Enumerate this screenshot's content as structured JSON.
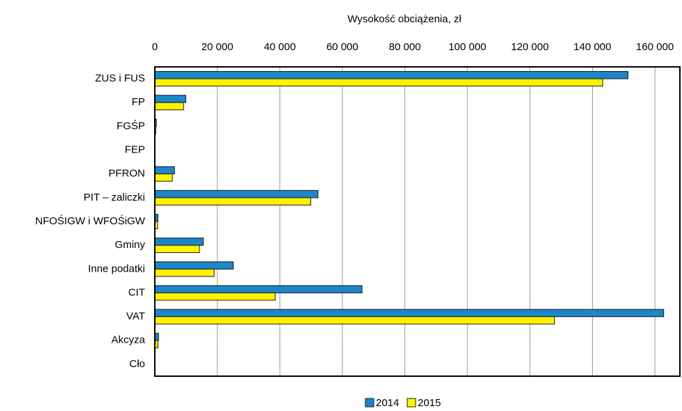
{
  "chart_data": {
    "type": "hbar",
    "x_axis_label": "Wysokość obciążenia, zł",
    "categories": [
      "ZUS i FUS",
      "FP",
      "FGŚP",
      "FEP",
      "PFRON",
      "PIT – zaliczki",
      "NFOŚIGW i WFOŚiGW",
      "Gminy",
      "Inne podatki",
      "CIT",
      "VAT",
      "Akcyza",
      "Cło"
    ],
    "series": [
      {
        "name": "2014",
        "color": "#1b87c9",
        "values": [
          151400,
          9900,
          500,
          100,
          6300,
          52200,
          1000,
          15500,
          25100,
          66300,
          162800,
          1200,
          100
        ]
      },
      {
        "name": "2015",
        "color": "#fff200",
        "values": [
          143300,
          9200,
          300,
          100,
          5600,
          49900,
          900,
          14300,
          19000,
          38500,
          127900,
          1000,
          100
        ]
      }
    ],
    "xlim": [
      0,
      168000
    ],
    "xticks": [
      0,
      {
        "value": 20000,
        "label": "20 000"
      },
      {
        "value": 40000,
        "label": "40 000"
      },
      {
        "value": 60000,
        "label": "60 000"
      },
      {
        "value": 80000,
        "label": "80 000"
      },
      {
        "value": 100000,
        "label": "100 000"
      },
      {
        "value": 120000,
        "label": "120 000"
      },
      {
        "value": 140000,
        "label": "140 000"
      },
      {
        "value": 160000,
        "label": "160 000"
      }
    ],
    "grid": true,
    "legend": "bottom"
  }
}
